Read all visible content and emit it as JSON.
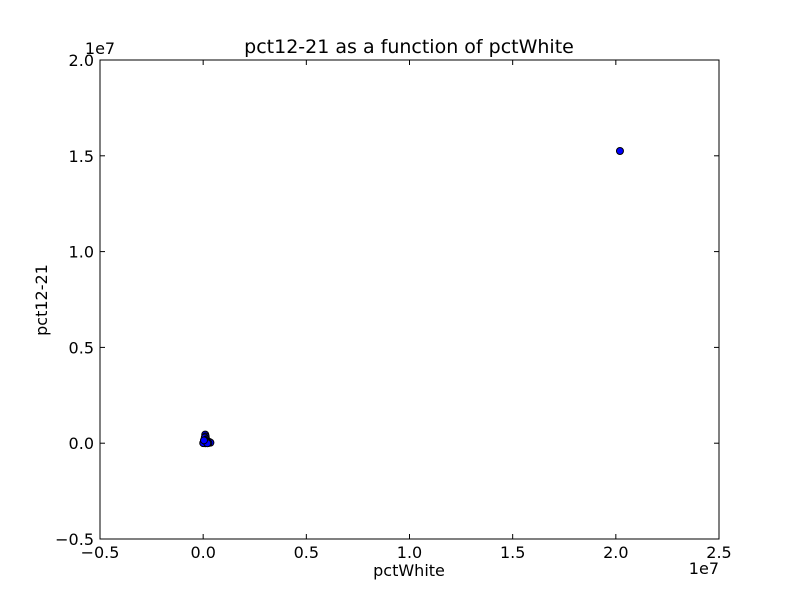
{
  "chart_data": {
    "type": "scatter",
    "title": "pct12-21 as a function of pctWhite",
    "xlabel": "pctWhite",
    "ylabel": "pct12-21",
    "xlim": [
      -5000000,
      25000000
    ],
    "ylim": [
      -5000000,
      20000000
    ],
    "x_ticks": [
      -5000000,
      0,
      5000000,
      10000000,
      15000000,
      20000000,
      25000000
    ],
    "x_tick_labels": [
      "−0.5",
      "0.0",
      "0.5",
      "1.0",
      "1.5",
      "2.0",
      "2.5"
    ],
    "y_ticks": [
      -5000000,
      0,
      5000000,
      10000000,
      15000000,
      20000000
    ],
    "y_tick_labels": [
      "−0.5",
      "0.0",
      "0.5",
      "1.0",
      "1.5",
      "2.0"
    ],
    "x_offset_label": "1e7",
    "y_offset_label": "1e7",
    "grid": false,
    "marker_color": "#0000ff",
    "marker_edge_color": "#000000",
    "points": [
      {
        "x": 20200000,
        "y": 15250000
      },
      {
        "x": 100000,
        "y": 450000
      },
      {
        "x": 120000,
        "y": 350000
      },
      {
        "x": 80000,
        "y": 300000
      },
      {
        "x": 150000,
        "y": 200000
      },
      {
        "x": 100000,
        "y": 150000
      },
      {
        "x": 60000,
        "y": 100000
      },
      {
        "x": 200000,
        "y": 100000
      },
      {
        "x": 300000,
        "y": 60000
      },
      {
        "x": 350000,
        "y": 30000
      },
      {
        "x": 50000,
        "y": 50000
      },
      {
        "x": 20000,
        "y": 20000
      },
      {
        "x": 10000,
        "y": 10000
      },
      {
        "x": 30000,
        "y": 40000
      },
      {
        "x": 100000,
        "y": 0
      },
      {
        "x": 250000,
        "y": 10000
      },
      {
        "x": 5000,
        "y": 5000
      },
      {
        "x": 150000,
        "y": 80000
      },
      {
        "x": 200000,
        "y": 0
      },
      {
        "x": 40000,
        "y": 150000
      }
    ]
  }
}
